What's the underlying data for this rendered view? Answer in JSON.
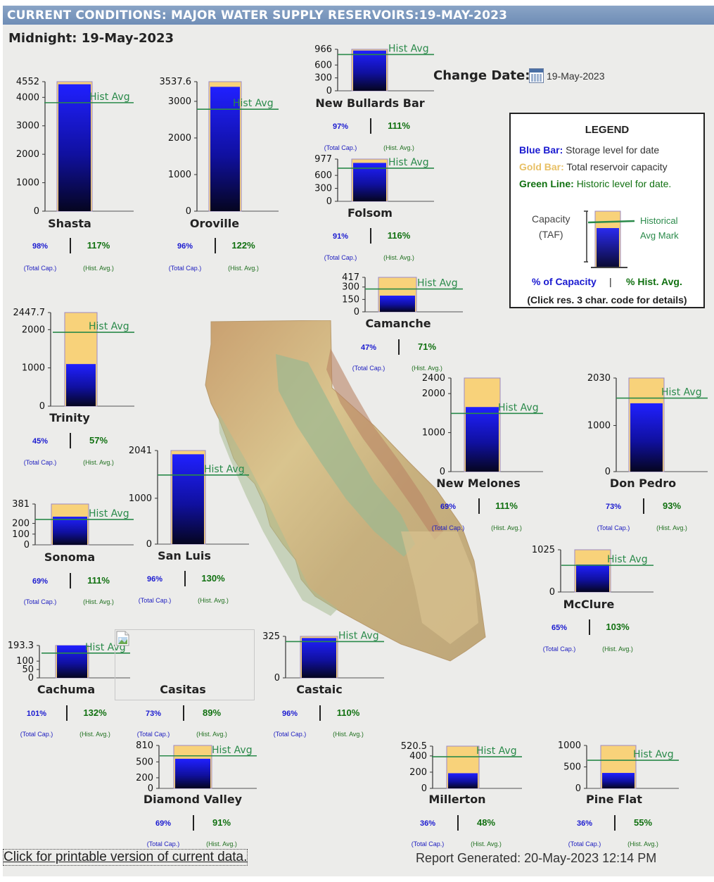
{
  "header": {
    "title": "CURRENT CONDITIONS: MAJOR WATER SUPPLY RESERVOIRS:19-MAY-2023"
  },
  "midnight_label": "Midnight: 19-May-2023",
  "change_date": {
    "label": "Change Date:",
    "value": "19-May-2023",
    "icon": "calendar-icon"
  },
  "hist_avg_label": "Hist Avg",
  "total_cap_label": "(Total Cap.)",
  "hist_avg_pct_label": "(Hist. Avg.)",
  "legend": {
    "title": "LEGEND",
    "blue_term": "Blue Bar:",
    "blue_desc": "Storage level for date",
    "gold_term": "Gold Bar:",
    "gold_desc": "Total reservoir capacity",
    "green_term": "Green Line:",
    "green_desc": "Historic level for date.",
    "capacity_label": "Capacity",
    "unit_label": "(TAF)",
    "hist_line1": "Historical",
    "hist_line2": "Avg Mark",
    "pct_capacity": "% of Capacity",
    "separator": "|",
    "pct_hist": "% Hist. Avg.",
    "click_note": "(Click res. 3 char. code for details)"
  },
  "chart_data": {
    "type": "bar",
    "unit": "TAF",
    "colors": {
      "storage": "#1010e0",
      "capacity": "#f8d27a",
      "hist_line": "#2a8a4a"
    },
    "reservoirs": [
      {
        "name": "Shasta",
        "capacity": 4552,
        "storage": 4461,
        "hist_avg": 3813,
        "pct_capacity": "98%",
        "pct_hist_avg": "117%",
        "ticks": [
          {
            "v": 0,
            "t": "0"
          },
          {
            "v": 1000,
            "t": "1000"
          },
          {
            "v": 2000,
            "t": "2000"
          },
          {
            "v": 3000,
            "t": "3000"
          },
          {
            "v": 4000,
            "t": "4000"
          },
          {
            "v": 4552,
            "t": "4552"
          }
        ]
      },
      {
        "name": "Oroville",
        "capacity": 3537.6,
        "storage": 3396,
        "hist_avg": 2784,
        "pct_capacity": "96%",
        "pct_hist_avg": "122%",
        "ticks": [
          {
            "v": 0,
            "t": "0"
          },
          {
            "v": 1000,
            "t": "1000"
          },
          {
            "v": 2000,
            "t": "2000"
          },
          {
            "v": 3000,
            "t": "3000"
          },
          {
            "v": 3537.6,
            "t": "3537.6"
          }
        ]
      },
      {
        "name": "New Bullards Bar",
        "capacity": 966,
        "storage": 937,
        "hist_avg": 844,
        "pct_capacity": "97%",
        "pct_hist_avg": "111%",
        "ticks": [
          {
            "v": 0,
            "t": "0"
          },
          {
            "v": 300,
            "t": "300"
          },
          {
            "v": 600,
            "t": "600"
          },
          {
            "v": 966,
            "t": "966"
          }
        ]
      },
      {
        "name": "Folsom",
        "capacity": 977,
        "storage": 889,
        "hist_avg": 766,
        "pct_capacity": "91%",
        "pct_hist_avg": "116%",
        "ticks": [
          {
            "v": 0,
            "t": "0"
          },
          {
            "v": 300,
            "t": "300"
          },
          {
            "v": 600,
            "t": "600"
          },
          {
            "v": 977,
            "t": "977"
          }
        ]
      },
      {
        "name": "Camanche",
        "capacity": 417,
        "storage": 196,
        "hist_avg": 276,
        "pct_capacity": "47%",
        "pct_hist_avg": "71%",
        "ticks": [
          {
            "v": 0,
            "t": "0"
          },
          {
            "v": 150,
            "t": "150"
          },
          {
            "v": 300,
            "t": "300"
          },
          {
            "v": 417,
            "t": "417"
          }
        ]
      },
      {
        "name": "Trinity",
        "capacity": 2447.7,
        "storage": 1101,
        "hist_avg": 1932,
        "pct_capacity": "45%",
        "pct_hist_avg": "57%",
        "ticks": [
          {
            "v": 0,
            "t": "0"
          },
          {
            "v": 1000,
            "t": "1000"
          },
          {
            "v": 2000,
            "t": "2000"
          },
          {
            "v": 2447.7,
            "t": "2447.7"
          }
        ]
      },
      {
        "name": "New Melones",
        "capacity": 2400,
        "storage": 1656,
        "hist_avg": 1492,
        "pct_capacity": "69%",
        "pct_hist_avg": "111%",
        "ticks": [
          {
            "v": 0,
            "t": "0"
          },
          {
            "v": 1000,
            "t": "1000"
          },
          {
            "v": 2000,
            "t": "2000"
          },
          {
            "v": 2400,
            "t": "2400"
          }
        ]
      },
      {
        "name": "Don Pedro",
        "capacity": 2030,
        "storage": 1482,
        "hist_avg": 1594,
        "pct_capacity": "73%",
        "pct_hist_avg": "93%",
        "ticks": [
          {
            "v": 0,
            "t": "0"
          },
          {
            "v": 1000,
            "t": "1000"
          },
          {
            "v": 2030,
            "t": "2030"
          }
        ]
      },
      {
        "name": "Sonoma",
        "capacity": 381,
        "storage": 263,
        "hist_avg": 237,
        "pct_capacity": "69%",
        "pct_hist_avg": "111%",
        "ticks": [
          {
            "v": 0,
            "t": "0"
          },
          {
            "v": 100,
            "t": "100"
          },
          {
            "v": 200,
            "t": "200"
          },
          {
            "v": 381,
            "t": "381"
          }
        ]
      },
      {
        "name": "San Luis",
        "capacity": 2041,
        "storage": 1959,
        "hist_avg": 1507,
        "pct_capacity": "96%",
        "pct_hist_avg": "130%",
        "ticks": [
          {
            "v": 0,
            "t": "0"
          },
          {
            "v": 1000,
            "t": "1000"
          },
          {
            "v": 2041,
            "t": "2041"
          }
        ]
      },
      {
        "name": "McClure",
        "capacity": 1025,
        "storage": 666,
        "hist_avg": 647,
        "pct_capacity": "65%",
        "pct_hist_avg": "103%",
        "ticks": [
          {
            "v": 0,
            "t": "0"
          },
          {
            "v": 1025,
            "t": "1025"
          }
        ]
      },
      {
        "name": "Cachuma",
        "capacity": 193.3,
        "storage": 195,
        "hist_avg": 148,
        "pct_capacity": "101%",
        "pct_hist_avg": "132%",
        "ticks": [
          {
            "v": 0,
            "t": "0"
          },
          {
            "v": 50,
            "t": "50"
          },
          {
            "v": 100,
            "t": "100"
          },
          {
            "v": 193.3,
            "t": "193.3"
          }
        ]
      },
      {
        "name": "Casitas",
        "pct_capacity": "73%",
        "pct_hist_avg": "89%"
      },
      {
        "name": "Castaic",
        "capacity": 325,
        "storage": 312,
        "hist_avg": 284,
        "pct_capacity": "96%",
        "pct_hist_avg": "110%",
        "ticks": [
          {
            "v": 0,
            "t": "0"
          },
          {
            "v": 325,
            "t": "325"
          }
        ]
      },
      {
        "name": "Diamond Valley",
        "capacity": 810,
        "storage": 559,
        "hist_avg": 614,
        "pct_capacity": "69%",
        "pct_hist_avg": "91%",
        "ticks": [
          {
            "v": 0,
            "t": "0"
          },
          {
            "v": 200,
            "t": "200"
          },
          {
            "v": 500,
            "t": "500"
          },
          {
            "v": 810,
            "t": "810"
          }
        ]
      },
      {
        "name": "Millerton",
        "capacity": 520.5,
        "storage": 187,
        "hist_avg": 390,
        "pct_capacity": "36%",
        "pct_hist_avg": "48%",
        "ticks": [
          {
            "v": 0,
            "t": "0"
          },
          {
            "v": 200,
            "t": "200"
          },
          {
            "v": 400,
            "t": "400"
          },
          {
            "v": 520.5,
            "t": "520.5"
          }
        ]
      },
      {
        "name": "Pine Flat",
        "capacity": 1000,
        "storage": 360,
        "hist_avg": 655,
        "pct_capacity": "36%",
        "pct_hist_avg": "55%",
        "ticks": [
          {
            "v": 0,
            "t": "0"
          },
          {
            "v": 500,
            "t": "500"
          },
          {
            "v": 1000,
            "t": "1000"
          }
        ]
      }
    ]
  },
  "footer": {
    "printable_link": "Click for printable version of current data.",
    "report_generated": "Report Generated: 20-May-2023 12:14 PM"
  }
}
